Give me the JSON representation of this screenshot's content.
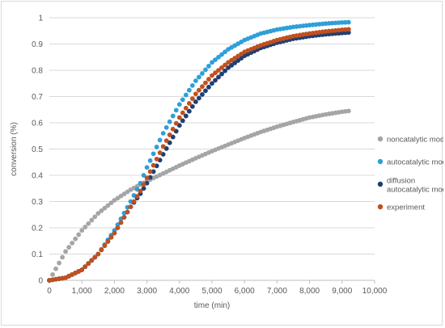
{
  "chart_data": {
    "type": "scatter",
    "title": "",
    "xlabel": "time (min)",
    "ylabel": "conversion (%)",
    "xlim": [
      0,
      10000
    ],
    "ylim": [
      0,
      1
    ],
    "x_ticks": [
      0,
      1000,
      2000,
      3000,
      4000,
      5000,
      6000,
      7000,
      8000,
      9000,
      10000
    ],
    "x_tick_labels": [
      "0",
      "1,000",
      "2,000",
      "3,000",
      "4,000",
      "5,000",
      "6,000",
      "7,000",
      "8,000",
      "9,000",
      "10,000"
    ],
    "y_ticks": [
      0,
      0.1,
      0.2,
      0.3,
      0.4,
      0.5,
      0.6,
      0.7,
      0.8,
      0.9,
      1
    ],
    "y_tick_labels": [
      "0",
      "0.1",
      "0.2",
      "0.3",
      "0.4",
      "0.5",
      "0.6",
      "0.7",
      "0.8",
      "0.9",
      "1"
    ],
    "grid": "horizontal",
    "legend_position": "right",
    "series": [
      {
        "name": "noncatalytic model",
        "color": "#a5a5a5",
        "x": [
          0,
          500,
          1000,
          1500,
          2000,
          2500,
          3000,
          3500,
          4000,
          4500,
          5000,
          5500,
          6000,
          6500,
          7000,
          7500,
          8000,
          8500,
          9000,
          9200
        ],
        "y": [
          0,
          0.11,
          0.19,
          0.255,
          0.305,
          0.345,
          0.378,
          0.407,
          0.437,
          0.465,
          0.492,
          0.517,
          0.542,
          0.565,
          0.585,
          0.603,
          0.62,
          0.632,
          0.642,
          0.645
        ]
      },
      {
        "name": "autocatalytic model",
        "color": "#2e9fd9",
        "x": [
          0,
          500,
          1000,
          1500,
          2000,
          2500,
          2800,
          3000,
          3500,
          4000,
          4500,
          5000,
          5500,
          6000,
          6500,
          7000,
          7500,
          8000,
          8500,
          9000,
          9200
        ],
        "y": [
          0,
          0.01,
          0.04,
          0.1,
          0.19,
          0.3,
          0.37,
          0.43,
          0.56,
          0.67,
          0.76,
          0.83,
          0.88,
          0.915,
          0.94,
          0.955,
          0.965,
          0.972,
          0.978,
          0.982,
          0.983
        ]
      },
      {
        "name": "diffusion autocatalytic model",
        "color": "#1f3f73",
        "x": [
          0,
          500,
          1000,
          1500,
          2000,
          2500,
          2800,
          3000,
          3500,
          4000,
          4500,
          5000,
          5500,
          6000,
          6500,
          7000,
          7500,
          8000,
          8500,
          9000,
          9200
        ],
        "y": [
          0,
          0.01,
          0.04,
          0.1,
          0.18,
          0.28,
          0.33,
          0.37,
          0.48,
          0.59,
          0.68,
          0.75,
          0.81,
          0.855,
          0.885,
          0.905,
          0.92,
          0.93,
          0.937,
          0.942,
          0.944
        ]
      },
      {
        "name": "experiment",
        "color": "#c0501f",
        "x": [
          0,
          500,
          1000,
          1500,
          2000,
          2500,
          2800,
          3000,
          3500,
          4000,
          4500,
          5000,
          5500,
          6000,
          6500,
          7000,
          7500,
          8000,
          8500,
          9000,
          9200
        ],
        "y": [
          0,
          0.01,
          0.04,
          0.1,
          0.18,
          0.28,
          0.34,
          0.39,
          0.51,
          0.62,
          0.71,
          0.78,
          0.83,
          0.87,
          0.895,
          0.915,
          0.93,
          0.94,
          0.948,
          0.954,
          0.956
        ]
      }
    ]
  }
}
